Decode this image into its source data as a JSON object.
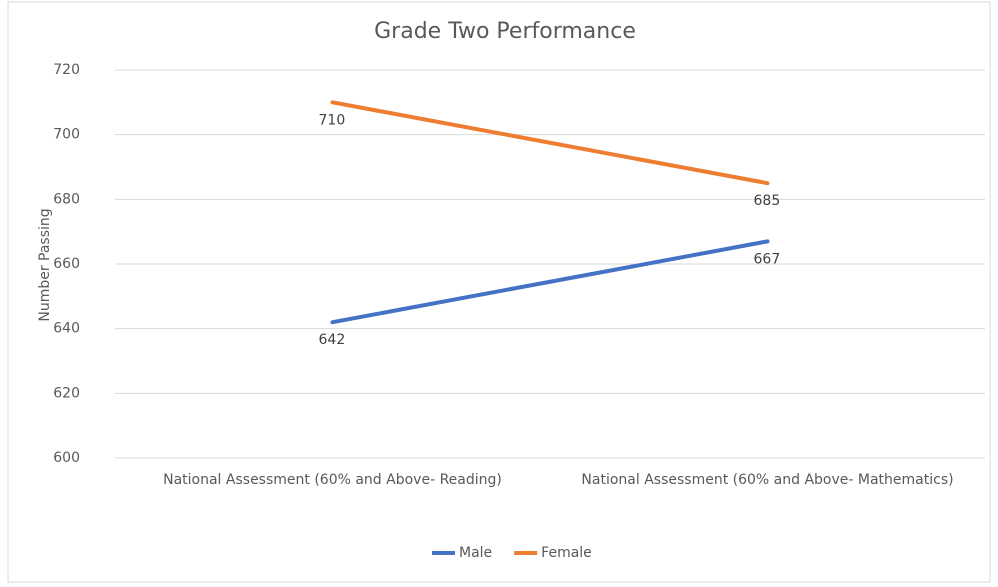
{
  "chart_data": {
    "type": "line",
    "title": "Grade Two Performance",
    "y_label": "Number Passing",
    "categories": [
      "National Assessment (60% and Above- Reading)",
      "National Assessment (60% and Above- Mathematics)"
    ],
    "series": [
      {
        "name": "Male",
        "color": "#4472c4",
        "values": [
          642,
          667
        ]
      },
      {
        "name": "Female",
        "color": "#ed7d31",
        "values": [
          710,
          685
        ]
      }
    ],
    "ylim": [
      600,
      720
    ],
    "yticks": [
      600,
      620,
      640,
      660,
      680,
      700,
      720
    ],
    "grid": true,
    "legend": "bottom"
  }
}
